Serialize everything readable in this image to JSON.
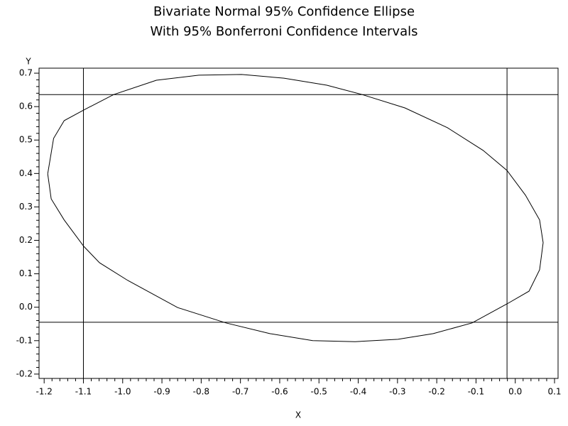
{
  "chart_data": {
    "type": "line",
    "title": "Bivariate Normal 95% Confidence Ellipse",
    "subtitle": "With 95% Bonferroni Confidence Intervals",
    "x_label": "X",
    "y_label": "Y",
    "x": [
      -1.191,
      -1.176,
      -1.149,
      -1.099,
      -1.023,
      -0.914,
      -0.806,
      -0.697,
      -0.589,
      -0.48,
      -0.39,
      -0.281,
      -0.173,
      -0.082,
      -0.021,
      0.026,
      0.062,
      0.071,
      0.062,
      0.035,
      -0.021,
      -0.11,
      -0.209,
      -0.299,
      -0.408,
      -0.516,
      -0.625,
      -0.737,
      -0.86,
      -0.987,
      -1.059,
      -1.099,
      -1.149,
      -1.182,
      -1.191
    ],
    "y": [
      0.399,
      0.505,
      0.558,
      0.59,
      0.636,
      0.679,
      0.694,
      0.696,
      0.685,
      0.664,
      0.636,
      0.596,
      0.537,
      0.469,
      0.409,
      0.335,
      0.261,
      0.193,
      0.112,
      0.048,
      0.01,
      -0.047,
      -0.079,
      -0.096,
      -0.103,
      -0.1,
      -0.079,
      -0.047,
      -0.001,
      0.08,
      0.133,
      0.182,
      0.261,
      0.324,
      0.399
    ],
    "color": "#000000",
    "reference_lines": {
      "x": [
        -1.1,
        -0.021
      ],
      "y": [
        0.636,
        -0.045
      ]
    },
    "xlim": [
      -1.213,
      0.109
    ],
    "ylim": [
      -0.213,
      0.715
    ],
    "xticks": [
      -1.2,
      -1.1,
      {
        "value": -1,
        "label": "-1.0"
      },
      -0.9,
      -0.8,
      -0.7,
      -0.6,
      -0.5,
      -0.4,
      -0.3,
      -0.2,
      -0.1,
      {
        "value": 0,
        "label": "0.0"
      },
      0.1
    ],
    "yticks": [
      -0.2,
      -0.1,
      {
        "value": 0,
        "label": "0.0"
      },
      0.1,
      0.2,
      0.3,
      0.4,
      0.5,
      0.6,
      0.7
    ]
  }
}
